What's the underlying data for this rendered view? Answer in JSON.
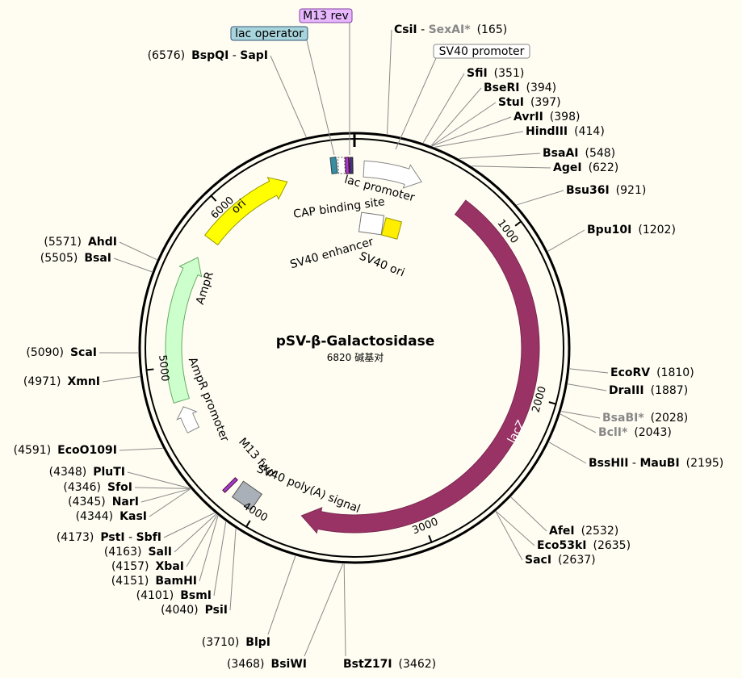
{
  "title": "pSV-β-Galactosidase",
  "length": 6820,
  "length_unit": "碱基对",
  "ruler": [
    1000,
    2000,
    3000,
    4000,
    5000,
    6000
  ],
  "boxed_labels": {
    "m13_rev": "M13 rev",
    "lac_operator": "lac operator",
    "sv40_promoter": "SV40 promoter"
  },
  "features": {
    "lacz": "lacZ",
    "ori": "ori",
    "ampr": "AmpR",
    "ampr_promoter": "AmpR promoter",
    "lac_promoter": "lac promoter",
    "cap_site": "CAP binding site",
    "sv40_enhancer": "SV40 enhancer",
    "sv40_ori": "SV40 ori",
    "m13_fwd": "M13 fwd",
    "sv40_polya": "SV40 poly(A) signal"
  },
  "enzyme_separator": " - ",
  "enzymes": [
    {
      "names": [
        "CsiI",
        "SexAI*"
      ],
      "position": "(165)"
    },
    {
      "names": [
        "SfiI"
      ],
      "position": "(351)"
    },
    {
      "names": [
        "BseRI"
      ],
      "position": "(394)"
    },
    {
      "names": [
        "StuI"
      ],
      "position": "(397)"
    },
    {
      "names": [
        "AvrII"
      ],
      "position": "(398)"
    },
    {
      "names": [
        "HindIII"
      ],
      "position": "(414)"
    },
    {
      "names": [
        "BsaAI"
      ],
      "position": "(548)"
    },
    {
      "names": [
        "AgeI"
      ],
      "position": "(622)"
    },
    {
      "names": [
        "Bsu36I"
      ],
      "position": "(921)"
    },
    {
      "names": [
        "Bpu10I"
      ],
      "position": "(1202)"
    },
    {
      "names": [
        "EcoRV"
      ],
      "position": "(1810)"
    },
    {
      "names": [
        "DraIII"
      ],
      "position": "(1887)"
    },
    {
      "names": [
        "BsaBI*"
      ],
      "position": "(2028)"
    },
    {
      "names": [
        "BclI*"
      ],
      "position": "(2043)"
    },
    {
      "names": [
        "BssHII",
        "MauBI"
      ],
      "position": "(2195)"
    },
    {
      "names": [
        "AfeI"
      ],
      "position": "(2532)"
    },
    {
      "names": [
        "Eco53kI"
      ],
      "position": "(2635)"
    },
    {
      "names": [
        "SacI"
      ],
      "position": "(2637)"
    },
    {
      "names": [
        "BstZ17I"
      ],
      "position": "(3462)"
    },
    {
      "names": [
        "BsiWI"
      ],
      "position": "(3468)"
    },
    {
      "names": [
        "BlpI"
      ],
      "position": "(3710)"
    },
    {
      "names": [
        "PsiI"
      ],
      "position": "(4040)"
    },
    {
      "names": [
        "BsmI"
      ],
      "position": "(4101)"
    },
    {
      "names": [
        "BamHI"
      ],
      "position": "(4151)"
    },
    {
      "names": [
        "XbaI"
      ],
      "position": "(4157)"
    },
    {
      "names": [
        "SalI"
      ],
      "position": "(4163)"
    },
    {
      "names": [
        "PstI",
        "SbfI"
      ],
      "position": "(4173)"
    },
    {
      "names": [
        "KasI"
      ],
      "position": "(4344)"
    },
    {
      "names": [
        "NarI"
      ],
      "position": "(4345)"
    },
    {
      "names": [
        "SfoI"
      ],
      "position": "(4346)"
    },
    {
      "names": [
        "PluTI"
      ],
      "position": "(4348)"
    },
    {
      "names": [
        "EcoO109I"
      ],
      "position": "(4591)"
    },
    {
      "names": [
        "XmnI"
      ],
      "position": "(4971)"
    },
    {
      "names": [
        "ScaI"
      ],
      "position": "(5090)"
    },
    {
      "names": [
        "BsaI"
      ],
      "position": "(5505)"
    },
    {
      "names": [
        "AhdI"
      ],
      "position": "(5571)"
    },
    {
      "names": [
        "BspQI",
        "SapI"
      ],
      "position": "(6576)"
    }
  ]
}
